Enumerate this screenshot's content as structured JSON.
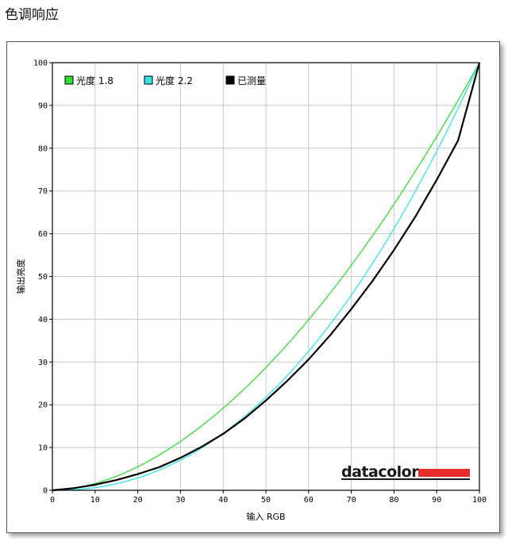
{
  "page": {
    "title": "色调响应"
  },
  "chart_data": {
    "type": "line",
    "title": "",
    "xlabel": "输入 RGB",
    "ylabel": "输出亮度",
    "xlim": [
      0,
      100
    ],
    "ylim": [
      0,
      100
    ],
    "x_ticks": [
      0,
      10,
      20,
      30,
      40,
      50,
      60,
      70,
      80,
      90,
      100
    ],
    "y_ticks": [
      0,
      10,
      20,
      30,
      40,
      50,
      60,
      70,
      80,
      90,
      100
    ],
    "grid": true,
    "legend_position": "top-left",
    "series": [
      {
        "name": "光度 1.8",
        "color": "#33dd33",
        "gamma": 1.8
      },
      {
        "name": "光度 2.2",
        "color": "#33e5e5",
        "gamma": 2.2
      },
      {
        "name": "已测量",
        "color": "#000000",
        "x": [
          0,
          5,
          10,
          15,
          20,
          25,
          30,
          35,
          40,
          45,
          50,
          55,
          60,
          65,
          70,
          75,
          80,
          85,
          90,
          95,
          100
        ],
        "y": [
          0,
          0.5,
          1.3,
          2.4,
          3.8,
          5.4,
          7.6,
          10.2,
          13.2,
          16.8,
          21.0,
          25.6,
          30.6,
          36.2,
          42.4,
          49.0,
          56.2,
          64.0,
          72.6,
          81.8,
          100
        ]
      }
    ]
  },
  "logo": {
    "text": "datacolor",
    "bar_color": "#e52b2b"
  }
}
